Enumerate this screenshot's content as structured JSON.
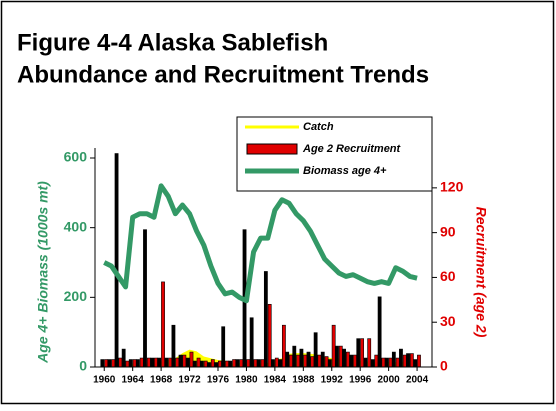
{
  "chart_data": {
    "type": "combo",
    "title": [
      "Figure 4-4 Alaska Sablefish",
      "Abundance and Recruitment Trends"
    ],
    "ylabel": "Age 4+ Biomass (1000s mt)",
    "y2label": "Recruitment (age 2)",
    "x": [
      1960,
      1961,
      1962,
      1963,
      1964,
      1965,
      1966,
      1967,
      1968,
      1969,
      1970,
      1971,
      1972,
      1973,
      1974,
      1975,
      1976,
      1977,
      1978,
      1979,
      1980,
      1981,
      1982,
      1983,
      1984,
      1985,
      1986,
      1987,
      1988,
      1989,
      1990,
      1991,
      1992,
      1993,
      1994,
      1995,
      1996,
      1997,
      1998,
      1999,
      2000,
      2001,
      2002,
      2003,
      2004
    ],
    "xlim": [
      1958.7,
      2006.1
    ],
    "xticks": [
      1960,
      1964,
      1968,
      1972,
      1976,
      1980,
      1984,
      1988,
      1992,
      1996,
      2000,
      2004
    ],
    "ylim": [
      0,
      600
    ],
    "yticks": [
      0,
      200,
      400,
      600
    ],
    "y2lim": [
      0,
      140
    ],
    "y2ticks": [
      0,
      30,
      60,
      90,
      120
    ],
    "legend": "top-right",
    "series": [
      {
        "name": "Catch",
        "color": "#ffff00",
        "type": "area",
        "axis": "y",
        "values": [
          1,
          1,
          3,
          5,
          10,
          5,
          8,
          10,
          16,
          20,
          25,
          40,
          50,
          45,
          30,
          25,
          20,
          18,
          10,
          12,
          10,
          10,
          10,
          12,
          20,
          25,
          38,
          40,
          40,
          38,
          35,
          30,
          25,
          25,
          23,
          22,
          18,
          16,
          15,
          14,
          15,
          14,
          15,
          16,
          16
        ]
      },
      {
        "name": "Age 2 Recruitment",
        "color": "#e00000",
        "type": "bar",
        "axis": "y2",
        "values": [
          5,
          5,
          6,
          4,
          5,
          6,
          6,
          6,
          57,
          6,
          6,
          8,
          10,
          6,
          4,
          5,
          4,
          4,
          5,
          5,
          5,
          5,
          5,
          42,
          6,
          28,
          8,
          8,
          8,
          7,
          8,
          7,
          28,
          14,
          10,
          8,
          19,
          19,
          8,
          6,
          6,
          6,
          8,
          9,
          8
        ]
      },
      {
        "name": "Biomass age 4+",
        "color": "#339966",
        "type": "line",
        "axis": "y",
        "values": [
          300,
          290,
          260,
          230,
          430,
          440,
          440,
          430,
          520,
          490,
          440,
          465,
          440,
          390,
          350,
          290,
          240,
          210,
          215,
          200,
          190,
          330,
          370,
          370,
          450,
          480,
          470,
          440,
          420,
          390,
          350,
          310,
          290,
          270,
          260,
          265,
          255,
          245,
          240,
          245,
          240,
          285,
          275,
          260,
          255
        ]
      },
      {
        "color": "#000000",
        "type": "bar",
        "axis": "y2",
        "values": [
          5,
          5,
          143,
          12,
          5,
          5,
          92,
          6,
          6,
          6,
          28,
          8,
          6,
          4,
          4,
          3,
          3,
          27,
          4,
          5,
          92,
          33,
          5,
          64,
          5,
          5,
          10,
          14,
          12,
          10,
          23,
          10,
          5,
          14,
          12,
          8,
          19,
          6,
          5,
          47,
          6,
          10,
          12,
          9,
          5
        ]
      }
    ]
  }
}
